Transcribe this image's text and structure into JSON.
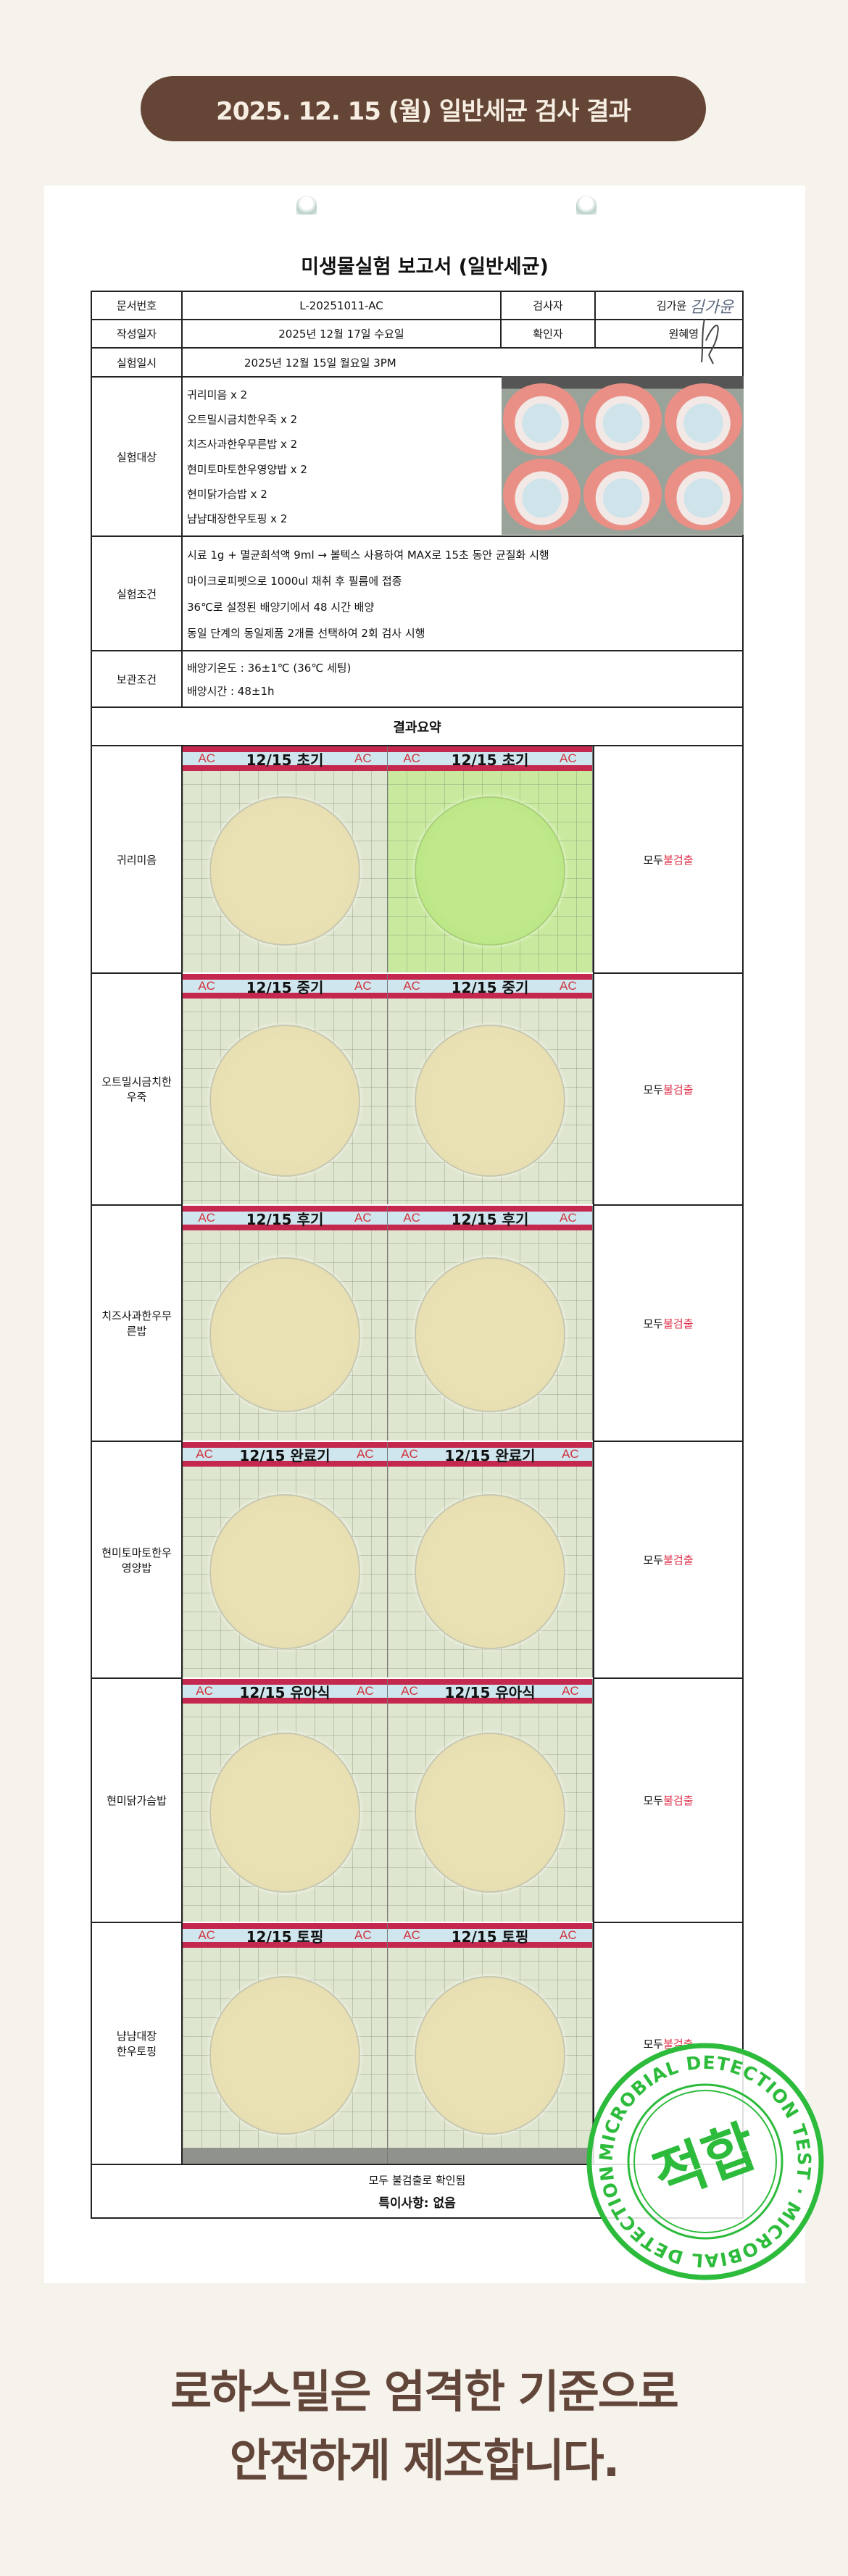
{
  "header": {
    "badge": "2025. 12. 15 (월) 일반세균 검사 결과"
  },
  "report": {
    "title": "미생물실험 보고서 (일반세균)",
    "doc_no_label": "문서번호",
    "doc_no": "L-20251011-AC",
    "inspector_label": "검사자",
    "inspector": "김가윤",
    "inspector_signature": "김가윤",
    "written_label": "작성일자",
    "written": "2025년 12월 17일 수요일",
    "confirmer_label": "확인자",
    "confirmer": "원혜영",
    "test_datetime_label": "실험일시",
    "test_datetime": "2025년 12월 15일 월요일 3PM",
    "subjects_label": "실험대상",
    "subjects": [
      "귀리미음 x 2",
      "오트밀시금치한우죽 x 2",
      "치즈사과한우무른밥 x 2",
      "현미토마토한우영양밥 x 2",
      "현미닭가슴밥 x 2",
      "냠냠대장한우토핑 x 2"
    ],
    "conditions_label": "실험조건",
    "conditions": [
      "시료 1g + 멸균희석액 9ml → 볼텍스 사용하여 MAX로 15초 동안 균질화 시행",
      "마이크로피펫으로  1000ul 채취 후 필름에 접종",
      "36℃로 설정된 배양기에서 48 시간 배양",
      "동일 단계의 동일제품 2개를 선택하여 2회 검사 시행"
    ],
    "storage_label": "보관조건",
    "storage": [
      "배양기온도 : 36±1℃ (36℃ 세팅)",
      "배양시간 : 48±1h"
    ],
    "summary_title": "결과요약",
    "film_code": "AC",
    "rows": [
      {
        "name": "귀리미음",
        "result_prefix": "모두",
        "result": "불검출",
        "labels": [
          "12/15 초기",
          "12/15 초기"
        ]
      },
      {
        "name": "오트밀시금치한우죽",
        "result_prefix": "모두",
        "result": "불검출",
        "labels": [
          "12/15 중기",
          "12/15 중기"
        ]
      },
      {
        "name": "치즈사과한우무른밥",
        "result_prefix": "모두",
        "result": "불검출",
        "labels": [
          "12/15 후기",
          "12/15 후기"
        ]
      },
      {
        "name": "현미토마토한우영양밥",
        "result_prefix": "모두",
        "result": "불검출",
        "labels": [
          "12/15 완료기",
          "12/15 완료기"
        ]
      },
      {
        "name": "현미닭가슴밥",
        "result_prefix": "모두",
        "result": "불검출",
        "labels": [
          "12/15 유아식",
          "12/15 유아식"
        ]
      },
      {
        "name": "냠냠대장\n한우토핑",
        "result_prefix": "모두",
        "result": "불검출",
        "labels": [
          "12/15 토핑",
          "12/15 토핑"
        ]
      }
    ],
    "conclusion": "모두 불검출로 확인됨",
    "special_note": "특이사항: 없음"
  },
  "stamp": {
    "ring_text": "MICROBIAL DETECTION TEST · MICROBIAL DETECTION TEST · ",
    "center": "적합",
    "color": "#2dbb3c"
  },
  "tagline": {
    "line1": "로하스밀은 엄격한 기준으로",
    "line2": "안전하게 제조합니다."
  },
  "colors": {
    "brand_brown": "#654636",
    "highlight_red": "#e0304a",
    "page_bg": "#f6f2ec"
  }
}
